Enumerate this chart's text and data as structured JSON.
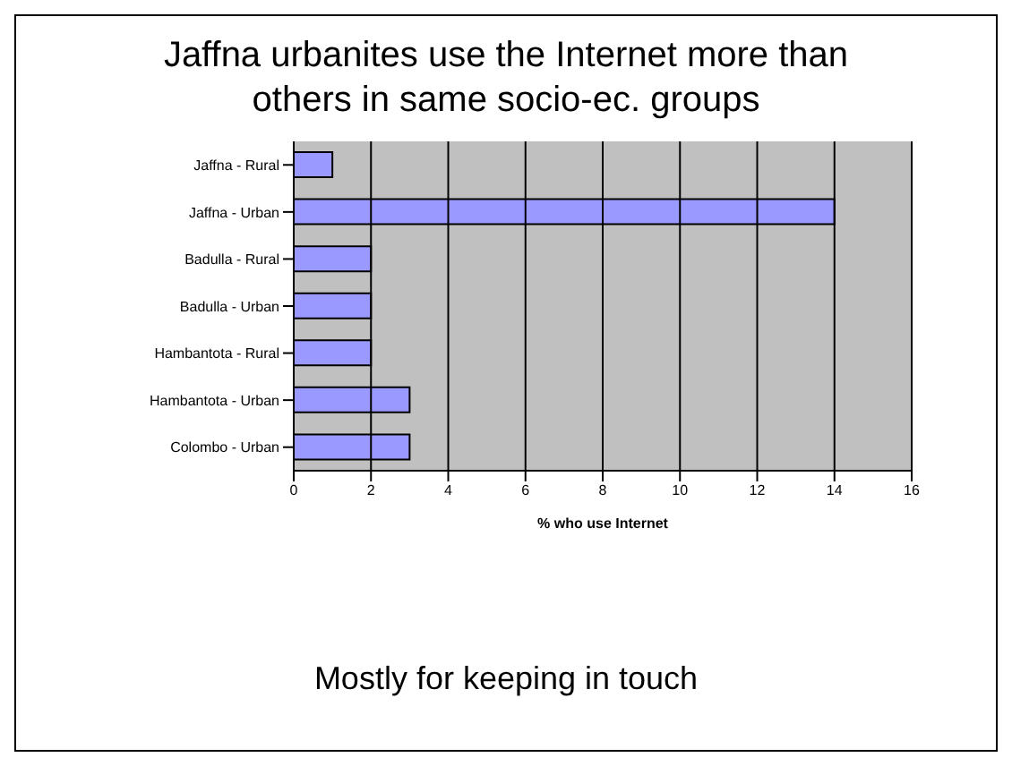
{
  "chart_data": {
    "type": "bar",
    "orientation": "horizontal",
    "title": "Jaffna urbanites use the Internet more than others in same socio-ec. groups",
    "categories": [
      "Jaffna - Rural",
      "Jaffna - Urban",
      "Badulla - Rural",
      "Badulla - Urban",
      "Hambantota - Rural",
      "Hambantota - Urban",
      "Colombo - Urban"
    ],
    "values": [
      1,
      14,
      2,
      2,
      2,
      3,
      3
    ],
    "color": "#9999ff",
    "xlim": [
      0,
      16
    ],
    "xticks": [
      0,
      2,
      4,
      6,
      8,
      10,
      12,
      14,
      16
    ],
    "xlabel": "% who use Internet",
    "grid": "x",
    "annotations": [
      "Mostly for keeping in touch"
    ]
  }
}
